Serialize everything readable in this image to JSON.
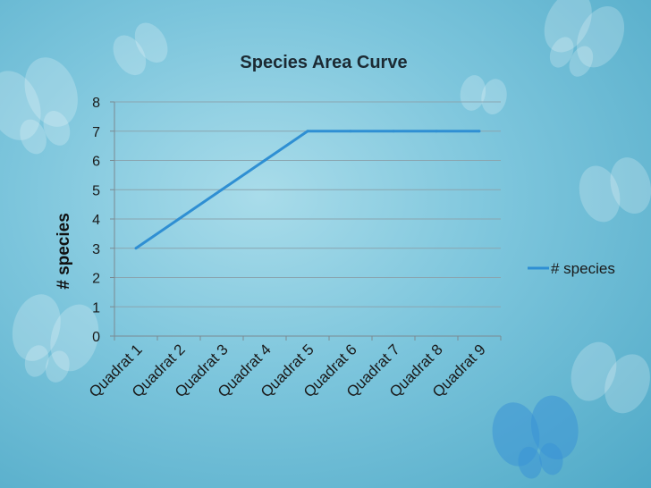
{
  "chart_data": {
    "type": "line",
    "title": "Species Area Curve",
    "xlabel": "",
    "ylabel": "# species",
    "categories": [
      "Quadrat 1",
      "Quadrat 2",
      "Quadrat 3",
      "Quadrat 4",
      "Quadrat 5",
      "Quadrat 6",
      "Quadrat 7",
      "Quadrat 8",
      "Quadrat 9"
    ],
    "series": [
      {
        "name": "# species",
        "values": [
          3,
          4,
          5,
          6,
          7,
          7,
          7,
          7,
          7
        ],
        "color": "#2f8fd3"
      }
    ],
    "yticks": [
      0,
      1,
      2,
      3,
      4,
      5,
      6,
      7,
      8
    ],
    "ylim": [
      0,
      8
    ],
    "grid": true,
    "legend": "right",
    "colors": {
      "grid": "#8aa5b0",
      "axis": "#7a8a92"
    }
  }
}
